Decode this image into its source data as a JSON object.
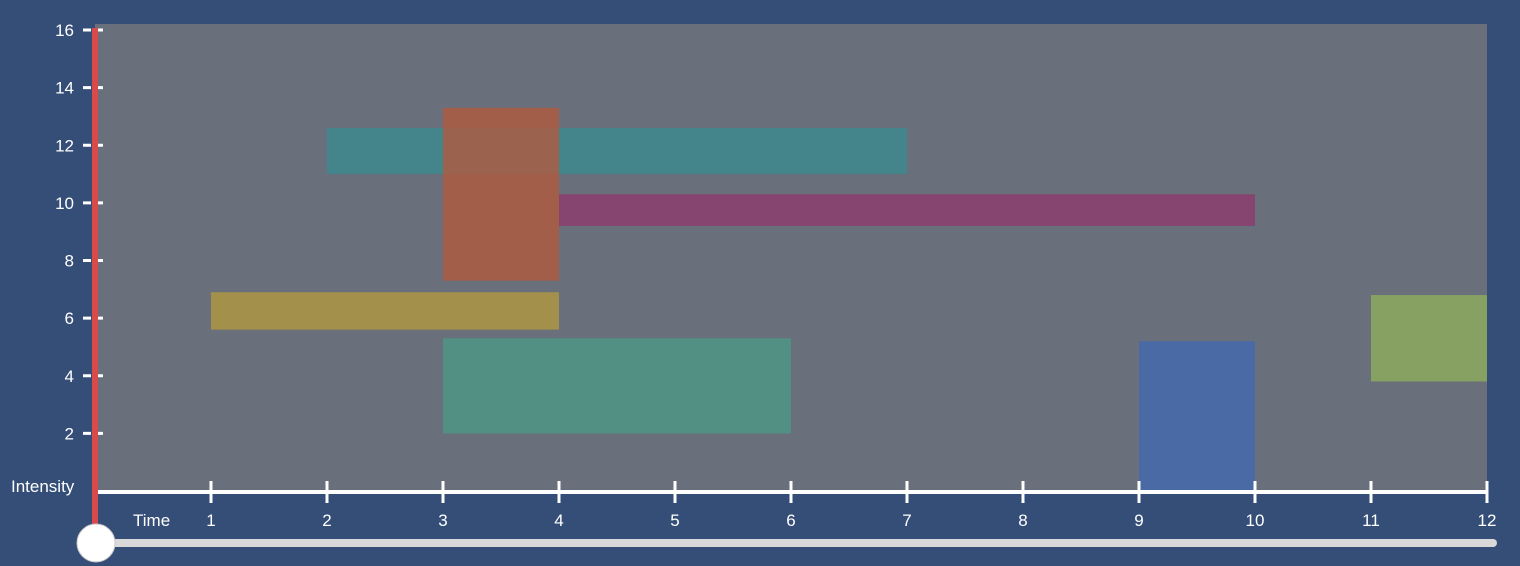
{
  "chart_data": {
    "type": "timeline",
    "xlabel": "Time",
    "ylabel": "Intensity",
    "xlim": [
      0,
      12
    ],
    "ylim": [
      0,
      16
    ],
    "x_ticks": [
      "1",
      "2",
      "3",
      "4",
      "5",
      "6",
      "7",
      "8",
      "9",
      "10",
      "11",
      "12"
    ],
    "y_ticks": [
      "2",
      "4",
      "6",
      "8",
      "10",
      "12",
      "14",
      "16"
    ],
    "grid": false,
    "bars": [
      {
        "x_start": 2,
        "x_end": 7,
        "y_low": 11,
        "y_high": 12.6,
        "color": "#3a8a8f"
      },
      {
        "x_start": 3,
        "x_end": 4,
        "y_low": 7.3,
        "y_high": 13.3,
        "color": "#b45a3c"
      },
      {
        "x_start": 4,
        "x_end": 10,
        "y_low": 9.2,
        "y_high": 10.3,
        "color": "#8e3a6e"
      },
      {
        "x_start": 1,
        "x_end": 4,
        "y_low": 5.6,
        "y_high": 6.9,
        "color": "#b29a3e"
      },
      {
        "x_start": 3,
        "x_end": 6,
        "y_low": 2,
        "y_high": 5.3,
        "color": "#4c9a86"
      },
      {
        "x_start": 9,
        "x_end": 10,
        "y_low": 0,
        "y_high": 5.2,
        "color": "#4169b2"
      },
      {
        "x_start": 11,
        "x_end": 12,
        "y_low": 3.8,
        "y_high": 6.8,
        "color": "#8fb05c"
      }
    ],
    "time_slider": {
      "value": 0
    }
  },
  "colors": {
    "background": "#354e77",
    "plot_background": "#696f7b",
    "axis": "#ffffff",
    "cursor": "#d94a4a",
    "slider_track": "#d9d9d9",
    "slider_handle": "#ffffff"
  }
}
